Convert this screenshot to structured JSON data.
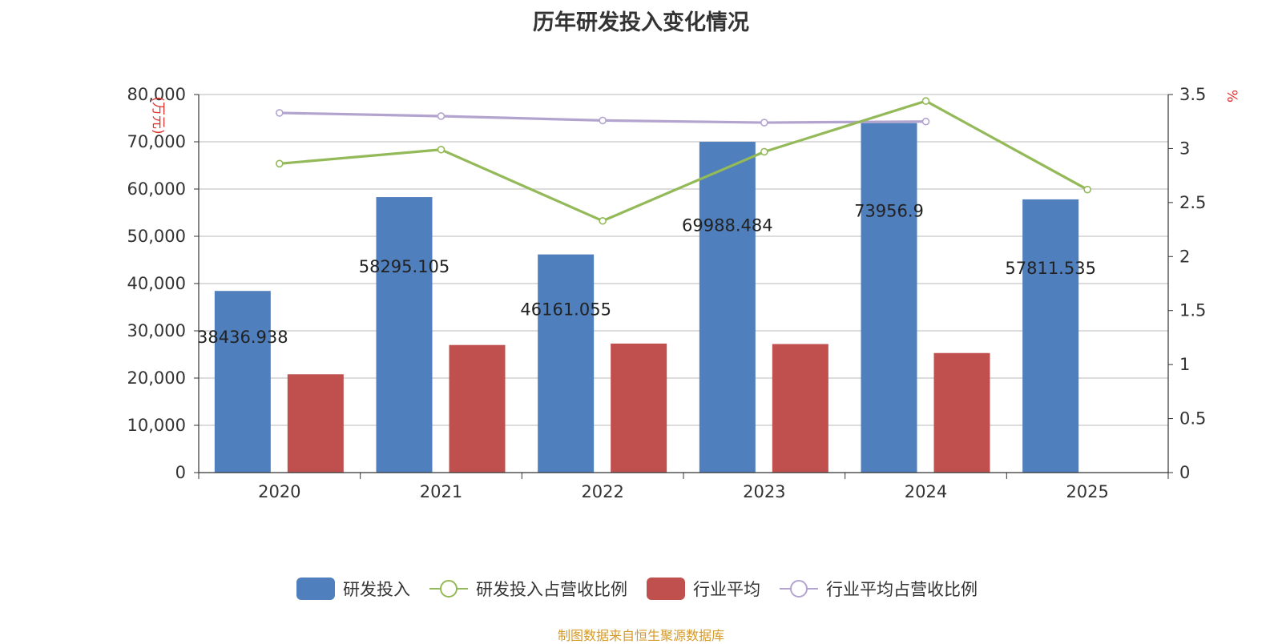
{
  "chart_data": {
    "type": "bar",
    "title": "历年研发投入变化情况",
    "categories": [
      "2020",
      "2021",
      "2022",
      "2023",
      "2024",
      "2025"
    ],
    "series": [
      {
        "name": "研发投入",
        "kind": "bar",
        "axis": "left",
        "values": [
          38436.938,
          58295.105,
          46161.055,
          69988.484,
          73956.9,
          57811.535
        ],
        "labels": [
          "38436.938",
          "58295.105",
          "46161.055",
          "69988.484",
          "73956.9",
          "57811.535"
        ]
      },
      {
        "name": "行业平均",
        "kind": "bar",
        "axis": "left",
        "values": [
          20800,
          27000,
          27300,
          27200,
          25300,
          null
        ]
      },
      {
        "name": "研发投入占营收比例",
        "kind": "line",
        "axis": "right",
        "values": [
          2.86,
          2.99,
          2.33,
          2.97,
          3.44,
          2.62
        ]
      },
      {
        "name": "行业平均占营收比例",
        "kind": "line",
        "axis": "right",
        "values": [
          3.33,
          3.3,
          3.26,
          3.24,
          3.25,
          null
        ]
      }
    ],
    "y_left": {
      "label": "(万元)",
      "min": 0,
      "max": 80000,
      "ticks": [
        "0",
        "10,000",
        "20,000",
        "30,000",
        "40,000",
        "50,000",
        "60,000",
        "70,000",
        "80,000"
      ]
    },
    "y_right": {
      "label": "%",
      "min": 0,
      "max": 3.5,
      "ticks": [
        "0",
        "0.5",
        "1",
        "1.5",
        "2",
        "2.5",
        "3",
        "3.5"
      ]
    },
    "grid": true,
    "legend_position": "bottom-center"
  },
  "legend": {
    "items": [
      {
        "label": "研发投入",
        "type": "bar",
        "color": "#4f7fbd"
      },
      {
        "label": "研发投入占营收比例",
        "type": "line",
        "color": "#93b958"
      },
      {
        "label": "行业平均",
        "type": "bar",
        "color": "#c0504d"
      },
      {
        "label": "行业平均占营收比例",
        "type": "line",
        "color": "#b3a4cf"
      }
    ]
  },
  "colors": {
    "rd_bar": "#4f7fbd",
    "avg_bar": "#c0504d",
    "rd_ratio_line": "#93b958",
    "avg_ratio_line": "#b3a4cf",
    "axis_unit_label": "#e0312e",
    "grid": "#c8c8c8"
  },
  "source_note": "制图数据来自恒生聚源数据库"
}
